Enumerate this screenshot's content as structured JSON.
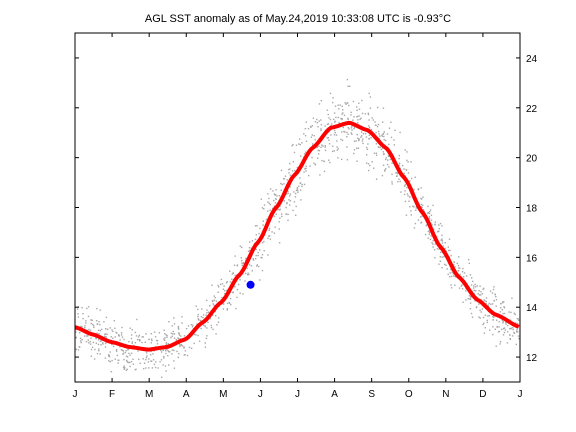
{
  "chart_data": {
    "type": "scatter",
    "title": "AGL SST anomaly as of May.24,2019 10:33:08 UTC is -0.93°C",
    "xlabel": "",
    "ylabel": "",
    "x_ticks": [
      "J",
      "F",
      "M",
      "A",
      "M",
      "J",
      "J",
      "A",
      "S",
      "O",
      "N",
      "D",
      "J"
    ],
    "y_ticks": [
      12,
      14,
      16,
      18,
      20,
      22,
      24
    ],
    "xlim": [
      0,
      365
    ],
    "ylim": [
      11,
      25
    ],
    "y_axis_side": "right",
    "grid": false,
    "colors": {
      "points": "#a8a8a8",
      "climatology": "#ff0000",
      "current": "#0000ff"
    },
    "climatology_curve": {
      "description_values": "mean seasonal SST",
      "x_day": [
        0,
        15,
        30,
        45,
        60,
        75,
        90,
        105,
        120,
        135,
        150,
        165,
        180,
        195,
        210,
        225,
        240,
        255,
        270,
        285,
        300,
        315,
        330,
        345,
        365
      ],
      "y": [
        13.2,
        12.9,
        12.6,
        12.4,
        12.3,
        12.4,
        12.7,
        13.4,
        14.2,
        15.3,
        16.6,
        18.0,
        19.3,
        20.4,
        21.2,
        21.4,
        21.1,
        20.4,
        19.2,
        17.8,
        16.4,
        15.2,
        14.3,
        13.7,
        13.2
      ]
    },
    "current_point": {
      "x_day": 144,
      "y": 14.9
    }
  }
}
